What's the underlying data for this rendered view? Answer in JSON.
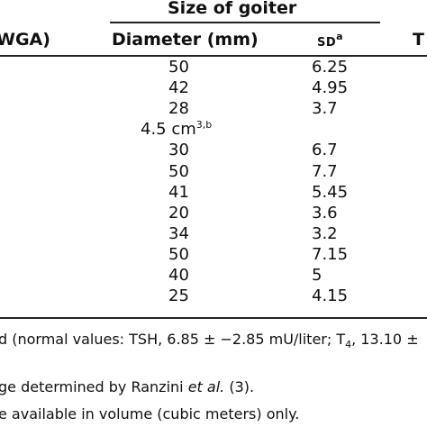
{
  "table": {
    "group_header": "Size of goiter",
    "col_left_partial": "WGA)",
    "col_diameter": "Diameter (mm)",
    "col_sd_text": "SD",
    "col_sd_sup": "a",
    "col_right_partial": "T",
    "rows": [
      {
        "diameter": "50",
        "sd": "6.25"
      },
      {
        "diameter": "42",
        "sd": "4.95"
      },
      {
        "diameter": "28",
        "sd": "3.7"
      },
      {
        "diameter": "4.5 cm",
        "diameter_sup": "3,b",
        "sd": ""
      },
      {
        "diameter": "30",
        "sd": "6.7"
      },
      {
        "diameter": "50",
        "sd": "7.7"
      },
      {
        "diameter": "41",
        "sd": "5.45"
      },
      {
        "diameter": "20",
        "sd": "3.6"
      },
      {
        "diameter": "34",
        "sd": "3.2"
      },
      {
        "diameter": "50",
        "sd": "7.15"
      },
      {
        "diameter": "40",
        "sd": "5"
      },
      {
        "diameter": "25",
        "sd": "4.15"
      }
    ]
  },
  "footnotes": {
    "line1_a": "d (normal values: TSH, 6.85 ± −2.85 mU/liter; T",
    "line1_sub": "4",
    "line1_b": ", 13.10 ±",
    "line2_a": "ge determined by Ranzini ",
    "line2_em": "et al.",
    "line2_b": " (3).",
    "line3": "e available in volume (cubic meters) only."
  }
}
